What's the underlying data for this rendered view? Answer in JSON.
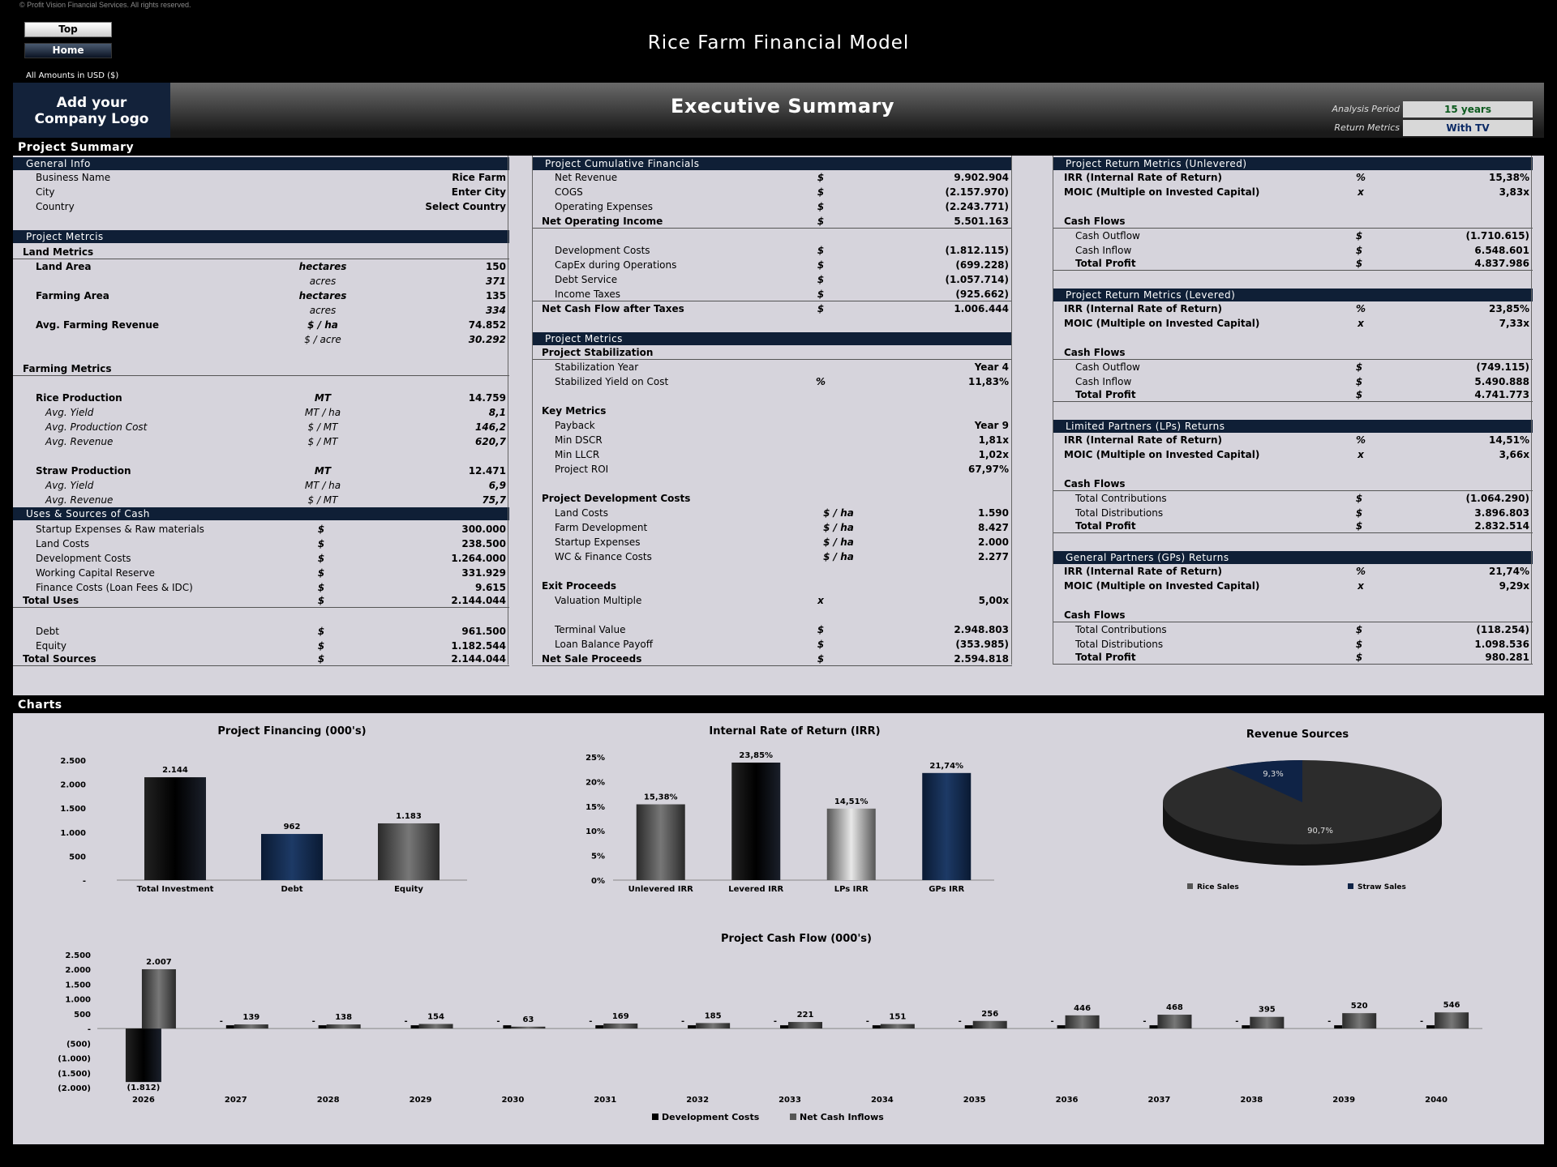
{
  "copyright": "© Profit Vision Financial Services. All rights reserved.",
  "nav": {
    "top": "Top",
    "home": "Home"
  },
  "app_title": "Rice Farm Financial Model",
  "amounts": "All Amounts in  USD ($)",
  "logo": "Add your Company Logo",
  "page_title": "Executive Summary",
  "analysis_period_label": "Analysis Period",
  "analysis_period_value": "15 years",
  "return_metrics_label": "Return Metrics",
  "return_metrics_value": "With TV",
  "project_summary": "Project Summary",
  "general_info": {
    "title": "General Info",
    "rows": [
      [
        "Business Name",
        "Rice Farm"
      ],
      [
        "City",
        "Enter City"
      ],
      [
        "Country",
        "Select Country"
      ]
    ]
  },
  "project_metrics_left": {
    "title": "Project Metrcis",
    "land_metrics": "Land Metrics",
    "farming_metrics": "Farming Metrics",
    "rows": [
      [
        "Land Area",
        "hectares",
        "150"
      ],
      [
        "",
        "acres",
        "371"
      ],
      [
        "Farming Area",
        "hectares",
        "135"
      ],
      [
        "",
        "acres",
        "334"
      ],
      [
        "Avg. Farming Revenue",
        "$ / ha",
        "74.852"
      ],
      [
        "",
        "$ / acre",
        "30.292"
      ],
      [
        "Rice Production",
        "MT",
        "14.759"
      ],
      [
        "Avg. Yield",
        "MT / ha",
        "8,1"
      ],
      [
        "Avg. Production Cost",
        "$ / MT",
        "146,2"
      ],
      [
        "Avg. Revenue",
        "$ / MT",
        "620,7"
      ],
      [
        "Straw Production",
        "MT",
        "12.471"
      ],
      [
        "Avg. Yield",
        "MT / ha",
        "6,9"
      ],
      [
        "Avg. Revenue",
        "$ / MT",
        "75,7"
      ]
    ]
  },
  "uses_sources": {
    "title": "Uses & Sources of Cash",
    "rows": [
      [
        "Startup Expenses & Raw materials",
        "$",
        "300.000"
      ],
      [
        "Land Costs",
        "$",
        "238.500"
      ],
      [
        "Development Costs",
        "$",
        "1.264.000"
      ],
      [
        "Working Capital Reserve",
        "$",
        "331.929"
      ],
      [
        "Finance Costs (Loan Fees & IDC)",
        "$",
        "9.615"
      ],
      [
        "Total Uses",
        "$",
        "2.144.044"
      ],
      [
        "Debt",
        "$",
        "961.500"
      ],
      [
        "Equity",
        "$",
        "1.182.544"
      ],
      [
        "Total Sources",
        "$",
        "2.144.044"
      ]
    ]
  },
  "cumulative": {
    "title": "Project Cumulative Financials",
    "rows": [
      [
        "Net Revenue",
        "$",
        "9.902.904"
      ],
      [
        "COGS",
        "$",
        "(2.157.970)"
      ],
      [
        "Operating Expenses",
        "$",
        "(2.243.771)"
      ],
      [
        "Net Operating Income",
        "$",
        "5.501.163"
      ],
      [
        "Development Costs",
        "$",
        "(1.812.115)"
      ],
      [
        "CapEx during Operations",
        "$",
        "(699.228)"
      ],
      [
        "Debt Service",
        "$",
        "(1.057.714)"
      ],
      [
        "Income Taxes",
        "$",
        "(925.662)"
      ],
      [
        "Net Cash Flow after Taxes",
        "$",
        "1.006.444"
      ]
    ]
  },
  "project_metrics_mid": {
    "title": "Project Metrics",
    "stabilization": "Project Stabilization",
    "key_metrics": "Key Metrics",
    "dev_costs": "Project Development Costs",
    "exit": "Exit Proceeds",
    "rows": [
      [
        "Stabilization Year",
        "",
        "Year 4"
      ],
      [
        "Stabilized Yield on Cost",
        "%",
        "11,83%"
      ],
      [
        "Payback",
        "",
        "Year 9"
      ],
      [
        "Min DSCR",
        "",
        "1,81x"
      ],
      [
        "Min LLCR",
        "",
        "1,02x"
      ],
      [
        "Project ROI",
        "",
        "67,97%"
      ],
      [
        "Land Costs",
        "$ / ha",
        "1.590"
      ],
      [
        "Farm Development",
        "$ / ha",
        "8.427"
      ],
      [
        "Startup Expenses",
        "$ / ha",
        "2.000"
      ],
      [
        "WC & Finance Costs",
        "$ / ha",
        "2.277"
      ],
      [
        "Valuation Multiple",
        "x",
        "5,00x"
      ],
      [
        "Terminal Value",
        "$",
        "2.948.803"
      ],
      [
        "Loan Balance Payoff",
        "$",
        "(353.985)"
      ],
      [
        "Net Sale Proceeds",
        "$",
        "2.594.818"
      ]
    ]
  },
  "returns": [
    {
      "title": "Project Return Metrics (Unlevered)",
      "irr": "15,38%",
      "moic": "3,83x",
      "r1": "Cash Outflow",
      "v1": "(1.710.615)",
      "r2": "Cash Inflow",
      "v2": "6.548.601",
      "v3": "4.837.986"
    },
    {
      "title": "Project Return Metrics (Levered)",
      "irr": "23,85%",
      "moic": "7,33x",
      "r1": "Cash Outflow",
      "v1": "(749.115)",
      "r2": "Cash Inflow",
      "v2": "5.490.888",
      "v3": "4.741.773"
    },
    {
      "title": "Limited Partners (LPs) Returns",
      "irr": "14,51%",
      "moic": "3,66x",
      "r1": "Total Contributions",
      "v1": "(1.064.290)",
      "r2": "Total Distributions",
      "v2": "3.896.803",
      "v3": "2.832.514"
    },
    {
      "title": "General Partners (GPs) Returns",
      "irr": "21,74%",
      "moic": "9,29x",
      "r1": "Total Contributions",
      "v1": "(118.254)",
      "r2": "Total Distributions",
      "v2": "1.098.536",
      "v3": "980.281"
    }
  ],
  "returns_labels": {
    "irr": "IRR (Internal Rate of Return)",
    "moic": "MOIC (Multiple on Invested Capital)",
    "cash_flows": "Cash Flows",
    "total_profit": "Total Profit",
    "pct": "%",
    "x": "x",
    "usd": "$"
  },
  "charts_title": "Charts",
  "chart_data": [
    {
      "type": "bar",
      "title": "Project Financing (000's)",
      "categories": [
        "Total Investment",
        "Debt",
        "Equity"
      ],
      "values": [
        2144,
        962,
        1183
      ],
      "labels": [
        "2.144",
        "962",
        "1.183"
      ],
      "ylim": [
        0,
        2500
      ],
      "yticks": [
        "2.500",
        "2.000",
        "1.500",
        "1.000",
        "500",
        "-"
      ]
    },
    {
      "type": "bar",
      "title": "Internal Rate of Return (IRR)",
      "categories": [
        "Unlevered IRR",
        "Levered IRR",
        "LPs IRR",
        "GPs IRR"
      ],
      "values": [
        15.38,
        23.85,
        14.51,
        21.74
      ],
      "labels": [
        "15,38%",
        "23,85%",
        "14,51%",
        "21,74%"
      ],
      "ylim": [
        0,
        25
      ],
      "yticks": [
        "25%",
        "20%",
        "15%",
        "10%",
        "5%",
        "0%"
      ]
    },
    {
      "type": "pie",
      "title": "Revenue Sources",
      "series": [
        {
          "name": "Rice Sales",
          "value": 90.7,
          "label": "90,7%"
        },
        {
          "name": "Straw Sales",
          "value": 9.3,
          "label": "9,3%"
        }
      ]
    },
    {
      "type": "bar",
      "title": "Project Cash Flow (000's)",
      "categories": [
        "2026",
        "2027",
        "2028",
        "2029",
        "2030",
        "2031",
        "2032",
        "2033",
        "2034",
        "2035",
        "2036",
        "2037",
        "2038",
        "2039",
        "2040"
      ],
      "series": [
        {
          "name": "Development Costs",
          "values": [
            -1812,
            0,
            0,
            0,
            0,
            0,
            0,
            0,
            0,
            0,
            0,
            0,
            0,
            0,
            0
          ],
          "labels": [
            "(1.812)",
            "-",
            "-",
            "-",
            "-",
            "-",
            "-",
            "-",
            "-",
            "-",
            "-",
            "-",
            "-",
            "-",
            "-"
          ]
        },
        {
          "name": "Net Cash Inflows",
          "values": [
            2007,
            139,
            138,
            154,
            63,
            169,
            185,
            221,
            151,
            256,
            446,
            468,
            395,
            520,
            546
          ],
          "labels": [
            "2.007",
            "139",
            "138",
            "154",
            "63",
            "169",
            "185",
            "221",
            "151",
            "256",
            "446",
            "468",
            "395",
            "520",
            "546"
          ]
        }
      ],
      "ylim": [
        -2000,
        2500
      ],
      "yticks": [
        "2.500",
        "2.000",
        "1.500",
        "1.000",
        "500",
        "-",
        "(500)",
        "(1.000)",
        "(1.500)",
        "(2.000)"
      ]
    }
  ]
}
